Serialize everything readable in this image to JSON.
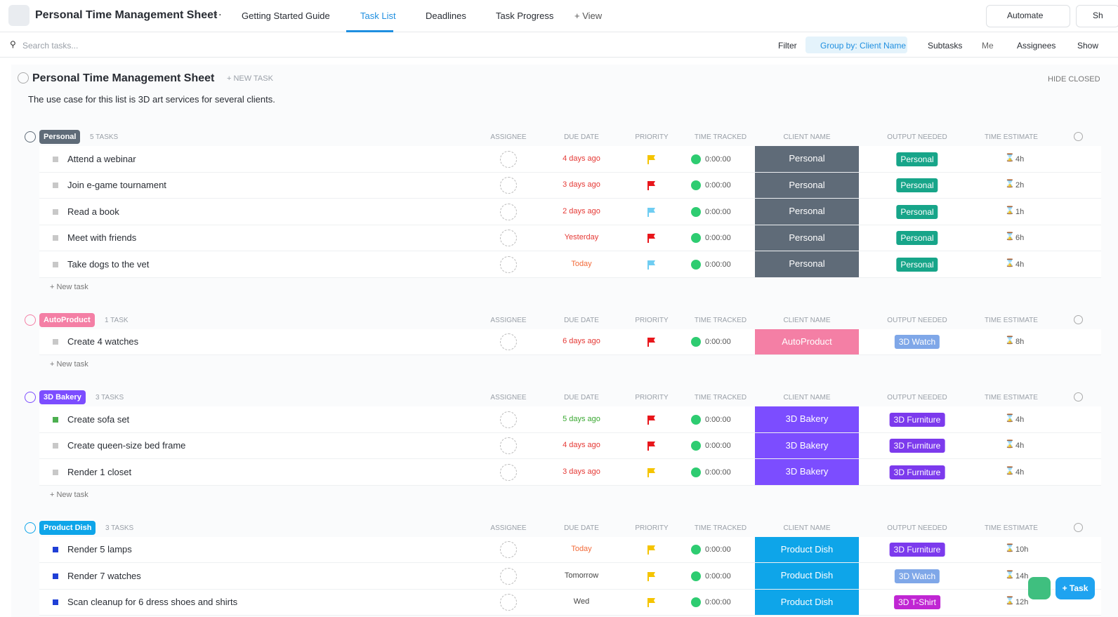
{
  "header": {
    "title": "Personal Time Management Sheet",
    "tabs": [
      "Getting Started Guide",
      "Task List",
      "Deadlines",
      "Task Progress"
    ],
    "add_view": "+ View",
    "automate": "Automate",
    "share": "Sh"
  },
  "toolbar": {
    "search_placeholder": "Search tasks...",
    "filter": "Filter",
    "group_by": "Group by: Client Name",
    "subtasks": "Subtasks",
    "me": "Me",
    "assignees": "Assignees",
    "show": "Show"
  },
  "list": {
    "title": "Personal Time Management Sheet",
    "new_task": "+ NEW TASK",
    "hide_closed": "HIDE CLOSED",
    "description": "The use case for this list is 3D art services for several clients.",
    "columns": [
      "ASSIGNEE",
      "DUE DATE",
      "PRIORITY",
      "TIME TRACKED",
      "CLIENT NAME",
      "OUTPUT NEEDED",
      "TIME ESTIMATE"
    ],
    "add_task": "+ New task",
    "groups": [
      {
        "name": "Personal",
        "count": "5 TASKS",
        "color": "#5f6b78",
        "tasks": [
          {
            "name": "Attend a webinar",
            "due": "4 days ago",
            "due_color": "#e53935",
            "priority_color": "#f5c400",
            "time": "0:00:00",
            "client": "Personal",
            "output": "Personal",
            "output_color": "#17a589",
            "estimate": "4h",
            "status_color": "#c8c8c8"
          },
          {
            "name": "Join e-game tournament",
            "due": "3 days ago",
            "due_color": "#e53935",
            "priority_color": "#e8161b",
            "time": "0:00:00",
            "client": "Personal",
            "output": "Personal",
            "output_color": "#17a589",
            "estimate": "2h",
            "status_color": "#c8c8c8"
          },
          {
            "name": "Read a book",
            "due": "2 days ago",
            "due_color": "#e53935",
            "priority_color": "#6fcdf2",
            "time": "0:00:00",
            "client": "Personal",
            "output": "Personal",
            "output_color": "#17a589",
            "estimate": "1h",
            "status_color": "#c8c8c8"
          },
          {
            "name": "Meet with friends",
            "due": "Yesterday",
            "due_color": "#e53935",
            "priority_color": "#e8161b",
            "time": "0:00:00",
            "client": "Personal",
            "output": "Personal",
            "output_color": "#17a589",
            "estimate": "6h",
            "status_color": "#c8c8c8"
          },
          {
            "name": "Take dogs to the vet",
            "due": "Today",
            "due_color": "#f26b3a",
            "priority_color": "#6fcdf2",
            "time": "0:00:00",
            "client": "Personal",
            "output": "Personal",
            "output_color": "#17a589",
            "estimate": "4h",
            "status_color": "#c8c8c8"
          }
        ]
      },
      {
        "name": "AutoProduct",
        "count": "1 TASK",
        "color": "#f47fa5",
        "tasks": [
          {
            "name": "Create 4 watches",
            "due": "6 days ago",
            "due_color": "#e53935",
            "priority_color": "#e8161b",
            "time": "0:00:00",
            "client": "AutoProduct",
            "output": "3D Watch",
            "output_color": "#7fa7e8",
            "estimate": "8h",
            "status_color": "#c8c8c8"
          }
        ]
      },
      {
        "name": "3D Bakery",
        "count": "3 TASKS",
        "color": "#7c4dff",
        "tasks": [
          {
            "name": "Create sofa set",
            "due": "5 days ago",
            "due_color": "#3aa832",
            "priority_color": "#e8161b",
            "time": "0:00:00",
            "client": "3D Bakery",
            "output": "3D Furniture",
            "output_color": "#7c3aed",
            "estimate": "4h",
            "status_color": "#4caf50"
          },
          {
            "name": "Create queen-size bed frame",
            "due": "4 days ago",
            "due_color": "#e53935",
            "priority_color": "#e8161b",
            "time": "0:00:00",
            "client": "3D Bakery",
            "output": "3D Furniture",
            "output_color": "#7c3aed",
            "estimate": "4h",
            "status_color": "#c8c8c8"
          },
          {
            "name": "Render 1 closet",
            "due": "3 days ago",
            "due_color": "#e53935",
            "priority_color": "#f5c400",
            "time": "0:00:00",
            "client": "3D Bakery",
            "output": "3D Furniture",
            "output_color": "#7c3aed",
            "estimate": "4h",
            "status_color": "#c8c8c8"
          }
        ]
      },
      {
        "name": "Product Dish",
        "count": "3 TASKS",
        "color": "#0ea5e9",
        "tasks": [
          {
            "name": "Render 5 lamps",
            "due": "Today",
            "due_color": "#f26b3a",
            "priority_color": "#f5c400",
            "time": "0:00:00",
            "client": "Product Dish",
            "output": "3D Furniture",
            "output_color": "#7c3aed",
            "estimate": "10h",
            "status_color": "#1f3fd6"
          },
          {
            "name": "Render 7 watches",
            "due": "Tomorrow",
            "due_color": "#444444",
            "priority_color": "#f5c400",
            "time": "0:00:00",
            "client": "Product Dish",
            "output": "3D Watch",
            "output_color": "#7fa7e8",
            "estimate": "14h",
            "status_color": "#1f3fd6"
          },
          {
            "name": "Scan cleanup for 6 dress shoes and shirts",
            "due": "Wed",
            "due_color": "#444444",
            "priority_color": "#f5c400",
            "time": "0:00:00",
            "client": "Product Dish",
            "output": "3D T-Shirt",
            "output_color": "#c026d3",
            "estimate": "12h",
            "status_color": "#1f3fd6"
          }
        ]
      }
    ]
  },
  "buttons": {
    "task": "+ Task"
  }
}
